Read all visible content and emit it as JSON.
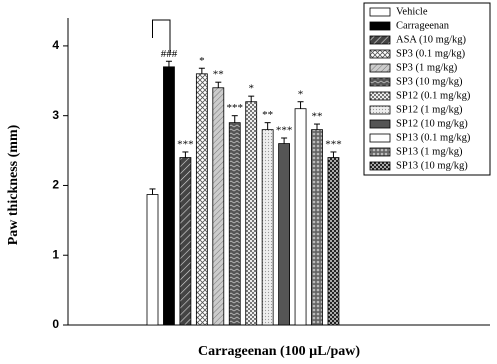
{
  "chart_data": {
    "type": "bar",
    "x_label": "Carrageenan (100 µL/paw)",
    "y_label": "Paw thickness (mm)",
    "categories": [
      "Vehicle",
      "Carrageenan",
      "ASA (10 mg/kg)",
      "SP3 (0.1 mg/kg)",
      "SP3 (1 mg/kg)",
      "SP3 (10 mg/kg)",
      "SP12 (0.1 mg/kg)",
      "SP12 (1 mg/kg)",
      "SP12 (10 mg/kg)",
      "SP13 (0.1 mg/kg)",
      "SP13 (1 mg/kg)",
      "SP13 (10 mg/kg)"
    ],
    "values": [
      1.87,
      3.7,
      2.4,
      3.6,
      3.4,
      2.9,
      3.2,
      2.8,
      2.6,
      3.1,
      2.8,
      2.4
    ],
    "errors": [
      0.08,
      0.08,
      0.08,
      0.08,
      0.08,
      0.1,
      0.08,
      0.1,
      0.08,
      0.1,
      0.08,
      0.08
    ],
    "annotations": [
      null,
      "###",
      "***",
      "*",
      "**",
      "***",
      "*",
      "**",
      "***",
      "*",
      "**",
      "***"
    ],
    "fills": [
      "white",
      "black",
      "diag-dark",
      "cross",
      "diag-light",
      "zigzag",
      "checker",
      "dots-light",
      "gray",
      "white",
      "circles",
      "checker-dark"
    ],
    "ylim": [
      0,
      4.4
    ],
    "yticks": [
      0,
      1,
      2,
      3,
      4
    ]
  }
}
